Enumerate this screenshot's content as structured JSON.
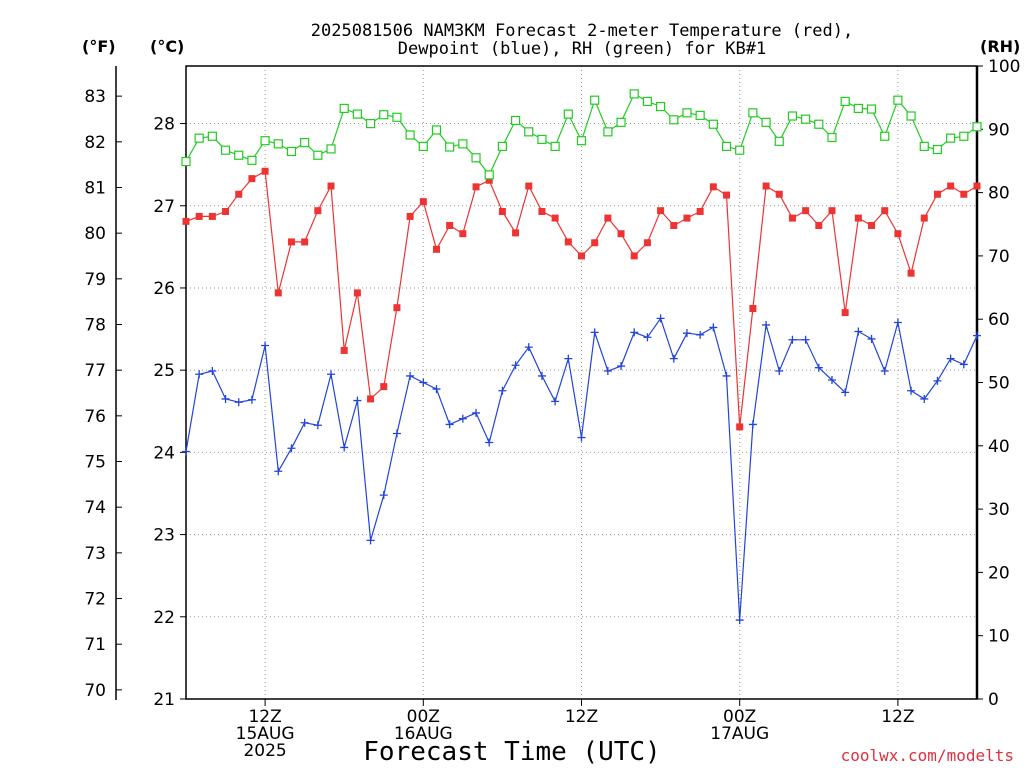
{
  "chart_data": {
    "type": "line",
    "title_line1": "2025081506 NAM3KM Forecast 2-meter Temperature (red),",
    "title_line2": "Dewpoint (blue), RH (green) for KB#1",
    "xlabel": "Forecast Time (UTC)",
    "credit": "coolwx.com/modelts",
    "units": {
      "f": "(°F)",
      "c": "(°C)",
      "rh": "(RH)"
    },
    "x_ticks": [
      {
        "x": 6,
        "line1": "12Z",
        "line2": "15AUG",
        "line3": "2025"
      },
      {
        "x": 18,
        "line1": "00Z",
        "line2": "16AUG",
        "line3": ""
      },
      {
        "x": 30,
        "line1": "12Z",
        "line2": "",
        "line3": ""
      },
      {
        "x": 42,
        "line1": "00Z",
        "line2": "17AUG",
        "line3": ""
      },
      {
        "x": 54,
        "line1": "12Z",
        "line2": "",
        "line3": ""
      }
    ],
    "x_range": [
      0,
      60
    ],
    "y_left_c": {
      "ticks": [
        21,
        22,
        23,
        24,
        25,
        26,
        27,
        28
      ],
      "range": [
        21,
        28.7
      ]
    },
    "y_left_f": {
      "ticks": [
        70,
        71,
        72,
        73,
        74,
        75,
        76,
        77,
        78,
        79,
        80,
        81,
        82,
        83
      ]
    },
    "y_right_rh": {
      "ticks": [
        0,
        10,
        20,
        30,
        40,
        50,
        60,
        70,
        80,
        90,
        100
      ],
      "range": [
        0,
        100
      ]
    },
    "grid": true,
    "series": [
      {
        "name": "Temperature",
        "color": "#ee3333",
        "marker": "filled-square",
        "axis": "c",
        "values": [
          26.81,
          26.87,
          26.87,
          26.93,
          27.14,
          27.33,
          27.42,
          25.94,
          26.56,
          26.56,
          26.94,
          27.24,
          25.24,
          25.94,
          24.65,
          24.8,
          25.76,
          26.87,
          27.05,
          26.47,
          26.76,
          26.66,
          27.23,
          27.31,
          26.93,
          26.67,
          27.24,
          26.93,
          26.85,
          26.56,
          26.39,
          26.55,
          26.85,
          26.66,
          26.39,
          26.55,
          26.94,
          26.76,
          26.85,
          26.93,
          27.23,
          27.13,
          24.31,
          25.75,
          27.24,
          27.14,
          26.85,
          26.94,
          26.76,
          26.94,
          25.7,
          26.85,
          26.76,
          26.94,
          26.66,
          26.18,
          26.85,
          27.14,
          27.24,
          27.14,
          27.24
        ]
      },
      {
        "name": "Dewpoint",
        "color": "#2244dd",
        "marker": "plus",
        "axis": "c",
        "values": [
          24.01,
          24.95,
          24.99,
          24.65,
          24.61,
          24.64,
          25.3,
          23.77,
          24.05,
          24.36,
          24.33,
          24.95,
          24.06,
          24.63,
          22.93,
          23.48,
          24.23,
          24.93,
          24.85,
          24.77,
          24.34,
          24.41,
          24.48,
          24.12,
          24.75,
          25.06,
          25.28,
          24.93,
          24.62,
          25.14,
          24.18,
          25.46,
          24.99,
          25.05,
          25.46,
          25.4,
          25.63,
          25.14,
          25.45,
          25.43,
          25.52,
          24.93,
          21.96,
          24.34,
          25.55,
          24.99,
          25.37,
          25.37,
          25.03,
          24.88,
          24.73,
          25.47,
          25.38,
          24.99,
          25.58,
          24.75,
          24.65,
          24.87,
          25.14,
          25.07,
          25.42
        ]
      },
      {
        "name": "RH",
        "color": "#22cc22",
        "marker": "open-square",
        "axis": "rh",
        "values": [
          84.9,
          88.6,
          88.9,
          86.7,
          85.9,
          85.1,
          88.2,
          87.7,
          86.5,
          87.9,
          85.9,
          86.9,
          93.3,
          92.4,
          90.9,
          92.3,
          91.9,
          89.1,
          87.3,
          89.9,
          87.2,
          87.7,
          85.5,
          82.8,
          87.3,
          91.4,
          89.6,
          88.4,
          87.3,
          92.4,
          88.2,
          94.6,
          89.6,
          91.1,
          95.6,
          94.4,
          93.6,
          91.5,
          92.6,
          92.2,
          90.8,
          87.3,
          86.7,
          92.6,
          91.1,
          88.1,
          92.1,
          91.6,
          90.8,
          88.7,
          94.4,
          93.3,
          93.2,
          88.9,
          94.6,
          92.1,
          87.3,
          86.8,
          88.6,
          88.9,
          90.4
        ]
      }
    ]
  }
}
